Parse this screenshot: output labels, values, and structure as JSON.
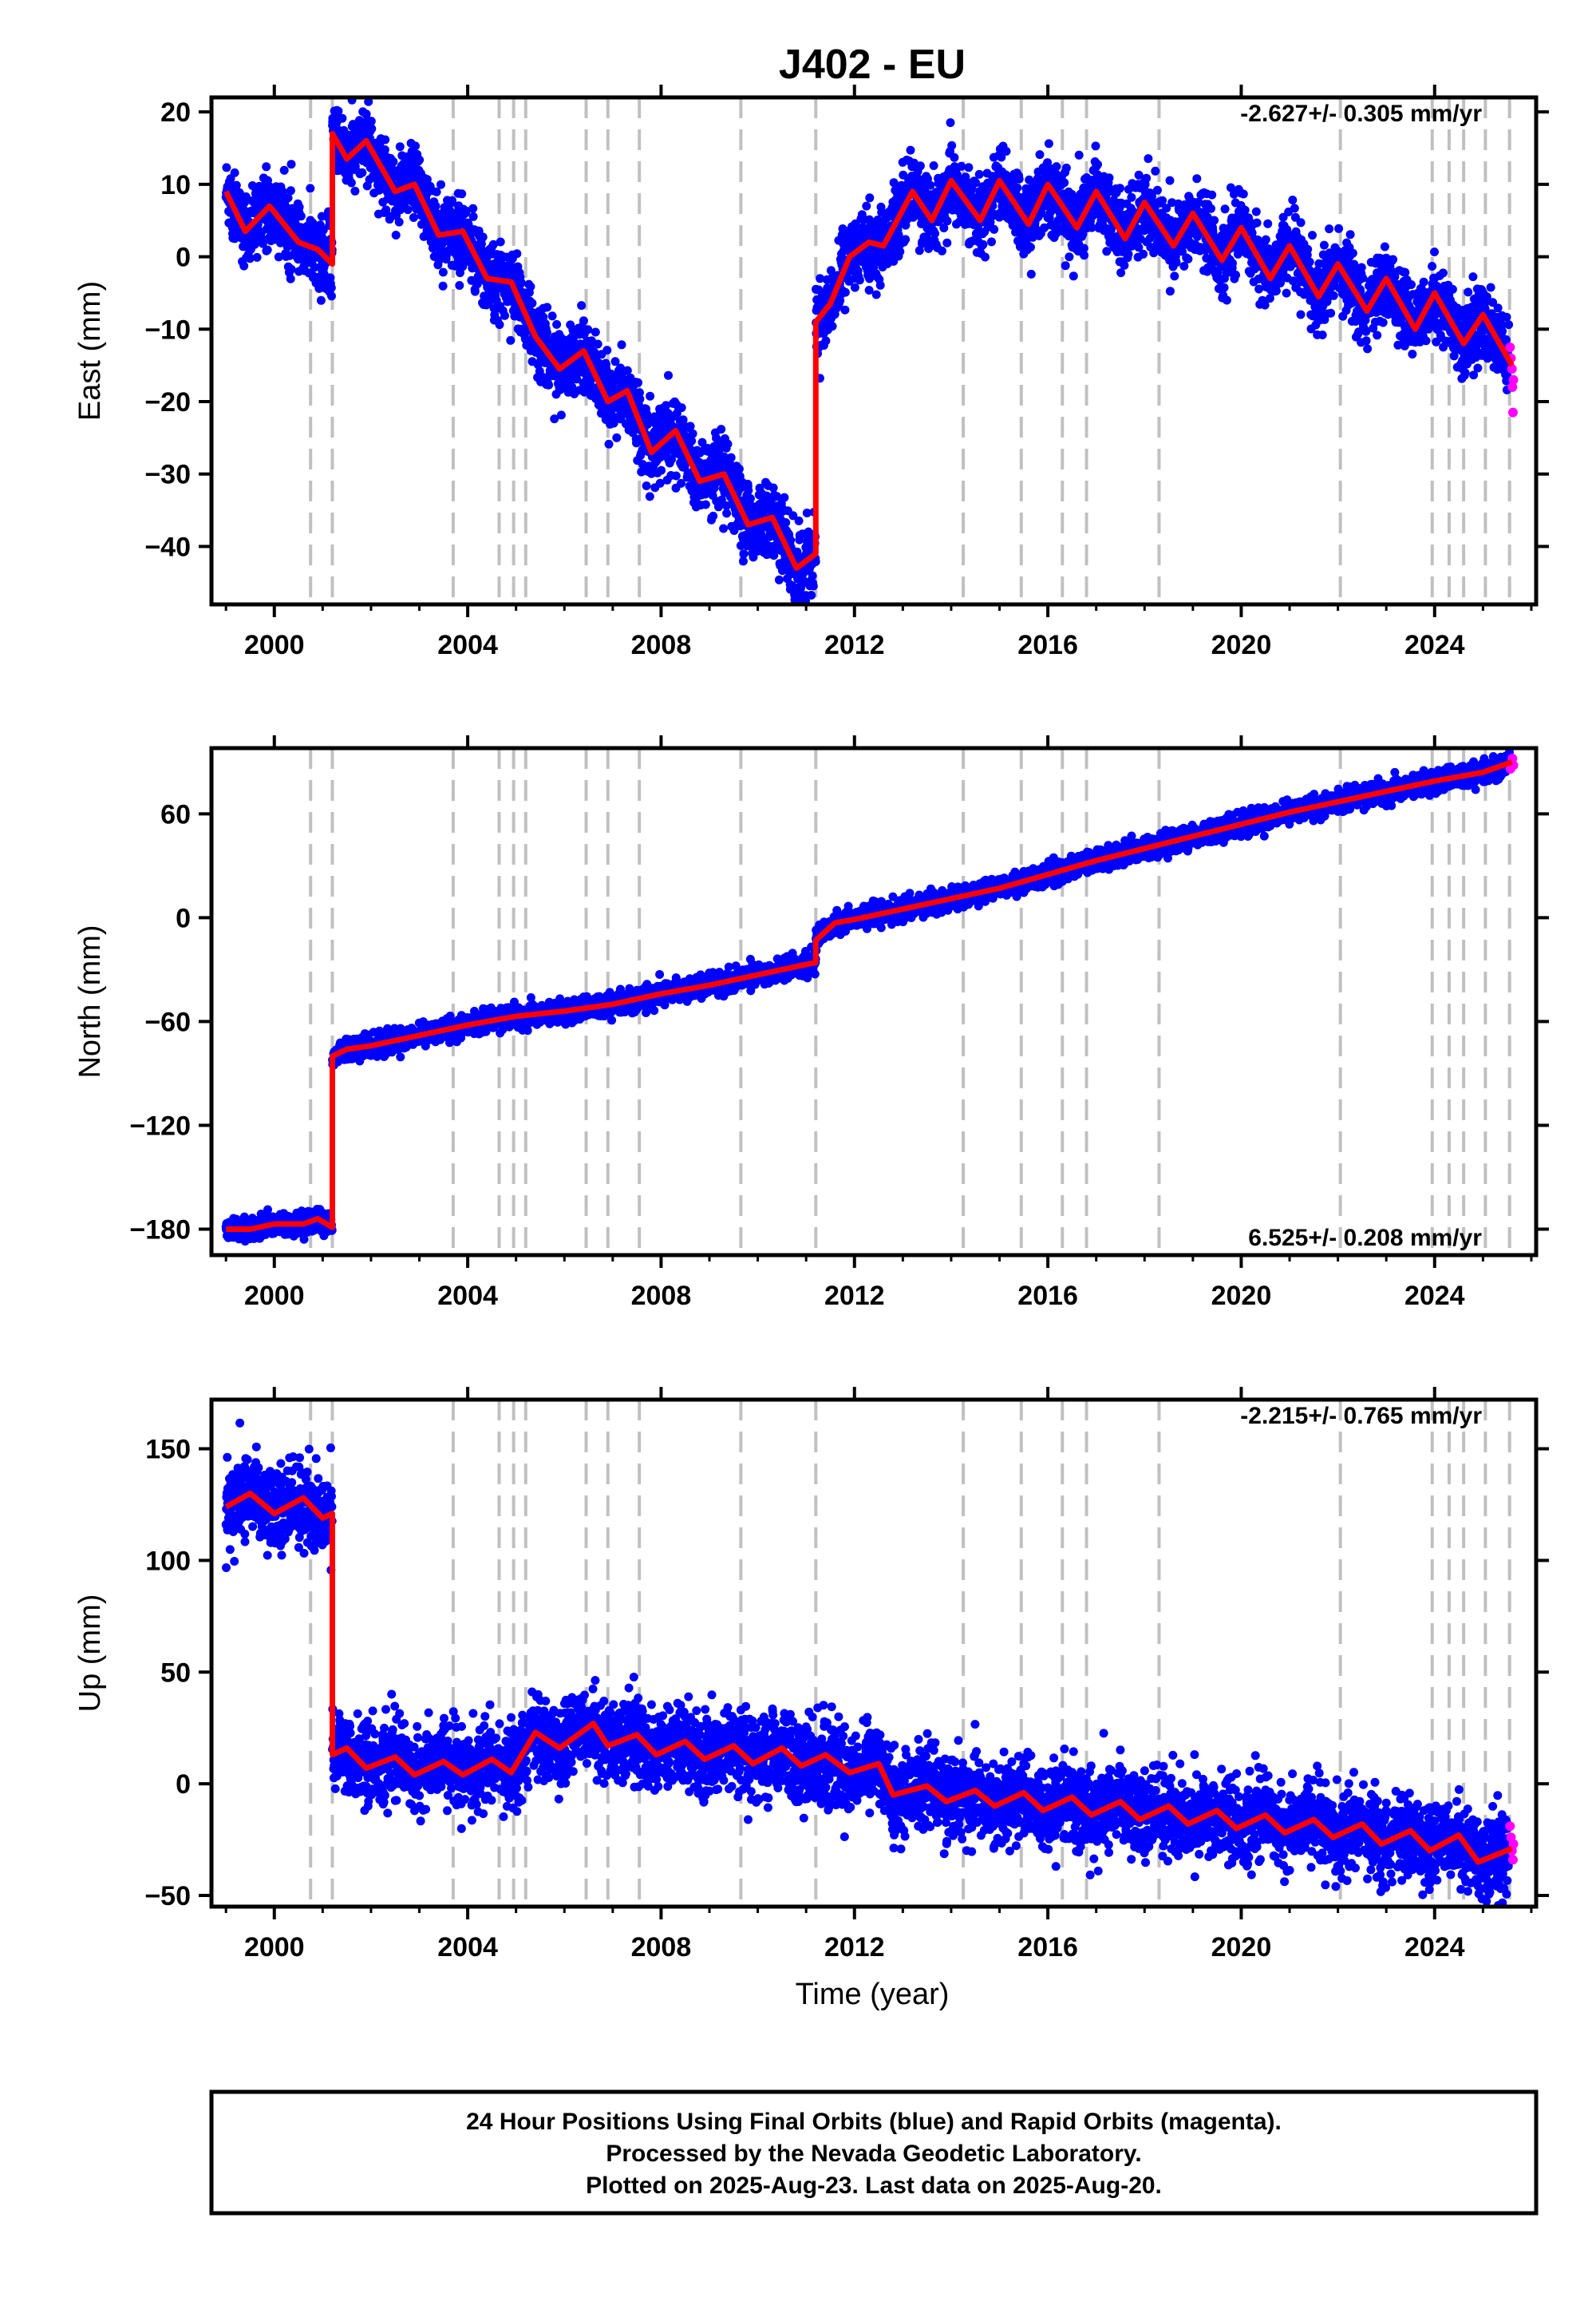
{
  "title": "J402 - EU",
  "xlabel": "Time (year)",
  "footer": {
    "line1": "24 Hour Positions Using Final Orbits (blue) and Rapid Orbits (magenta).",
    "line2": "Processed by the Nevada Geodetic Laboratory.",
    "line3": "Plotted on 2025-Aug-23. Last data on 2025-Aug-20."
  },
  "colors": {
    "final_orbits": "#0000ff",
    "rapid_orbits": "#ff00ff",
    "model": "#ff0000",
    "breaks": "#c0c0c0"
  },
  "chart_data": [
    {
      "type": "scatter",
      "ylabel": "East (mm)",
      "rate_label": "-2.627+/- 0.305 mm/yr",
      "rate_position": "top-right",
      "xlim": [
        1998.7,
        2026.1
      ],
      "ylim": [
        -48,
        22
      ],
      "xticks": [
        2000,
        2004,
        2008,
        2012,
        2016,
        2020,
        2024
      ],
      "yticks": [
        20,
        10,
        0,
        -10,
        -20,
        -30,
        -40
      ],
      "grid": false,
      "breaks": [
        2000.75,
        2001.2,
        2003.7,
        2004.65,
        2004.95,
        2005.2,
        2006.45,
        2006.9,
        2007.55,
        2009.65,
        2011.2,
        2014.25,
        2015.45,
        2016.3,
        2016.8,
        2018.3,
        2022.05,
        2023.95,
        2024.3,
        2024.6,
        2025.05,
        2025.55
      ],
      "scatter_noise_mm": 2.5,
      "model": [
        {
          "x": 1999.0,
          "y": 9
        },
        {
          "x": 1999.4,
          "y": 3.5
        },
        {
          "x": 1999.9,
          "y": 7
        },
        {
          "x": 2000.5,
          "y": 2
        },
        {
          "x": 2000.9,
          "y": 1
        },
        {
          "x": 2001.2,
          "y": -1
        },
        {
          "x": 2001.2,
          "y": 17
        },
        {
          "x": 2001.5,
          "y": 13.5
        },
        {
          "x": 2001.9,
          "y": 16
        },
        {
          "x": 2002.5,
          "y": 9
        },
        {
          "x": 2002.9,
          "y": 10
        },
        {
          "x": 2003.4,
          "y": 3
        },
        {
          "x": 2003.9,
          "y": 3.5
        },
        {
          "x": 2004.4,
          "y": -3
        },
        {
          "x": 2004.9,
          "y": -3.5
        },
        {
          "x": 2005.4,
          "y": -11
        },
        {
          "x": 2005.9,
          "y": -15.5
        },
        {
          "x": 2006.4,
          "y": -13
        },
        {
          "x": 2006.9,
          "y": -20
        },
        {
          "x": 2007.3,
          "y": -18.5
        },
        {
          "x": 2007.8,
          "y": -27
        },
        {
          "x": 2008.3,
          "y": -24
        },
        {
          "x": 2008.8,
          "y": -31
        },
        {
          "x": 2009.3,
          "y": -30
        },
        {
          "x": 2009.8,
          "y": -37
        },
        {
          "x": 2010.3,
          "y": -36
        },
        {
          "x": 2010.8,
          "y": -43
        },
        {
          "x": 2011.2,
          "y": -41
        },
        {
          "x": 2011.2,
          "y": -9
        },
        {
          "x": 2011.5,
          "y": -6.5
        },
        {
          "x": 2011.9,
          "y": 0
        },
        {
          "x": 2012.3,
          "y": 2
        },
        {
          "x": 2012.6,
          "y": 1.5
        },
        {
          "x": 2013.2,
          "y": 9
        },
        {
          "x": 2013.6,
          "y": 5
        },
        {
          "x": 2014.0,
          "y": 10.5
        },
        {
          "x": 2014.6,
          "y": 5
        },
        {
          "x": 2015.0,
          "y": 10.5
        },
        {
          "x": 2015.6,
          "y": 4.5
        },
        {
          "x": 2016.0,
          "y": 10
        },
        {
          "x": 2016.6,
          "y": 4
        },
        {
          "x": 2017.0,
          "y": 9
        },
        {
          "x": 2017.6,
          "y": 2.5
        },
        {
          "x": 2018.0,
          "y": 7.5
        },
        {
          "x": 2018.6,
          "y": 1.5
        },
        {
          "x": 2019.0,
          "y": 6
        },
        {
          "x": 2019.6,
          "y": -0.5
        },
        {
          "x": 2020.0,
          "y": 4
        },
        {
          "x": 2020.6,
          "y": -3
        },
        {
          "x": 2021.0,
          "y": 1.5
        },
        {
          "x": 2021.6,
          "y": -5.5
        },
        {
          "x": 2022.0,
          "y": -1
        },
        {
          "x": 2022.6,
          "y": -7.5
        },
        {
          "x": 2023.0,
          "y": -3
        },
        {
          "x": 2023.6,
          "y": -10
        },
        {
          "x": 2024.0,
          "y": -5
        },
        {
          "x": 2024.6,
          "y": -12
        },
        {
          "x": 2025.0,
          "y": -8
        },
        {
          "x": 2025.6,
          "y": -15
        }
      ],
      "rapid": [
        {
          "x": 2025.56,
          "y": -12.5
        },
        {
          "x": 2025.58,
          "y": -14
        },
        {
          "x": 2025.6,
          "y": -15.5
        },
        {
          "x": 2025.61,
          "y": -18
        },
        {
          "x": 2025.62,
          "y": -21.5
        },
        {
          "x": 2025.63,
          "y": -17
        }
      ]
    },
    {
      "type": "scatter",
      "ylabel": "North (mm)",
      "rate_label": "6.525+/- 0.208 mm/yr",
      "rate_position": "bottom-right",
      "xlim": [
        1998.7,
        2026.1
      ],
      "ylim": [
        -195,
        98
      ],
      "xticks": [
        2000,
        2004,
        2008,
        2012,
        2016,
        2020,
        2024
      ],
      "yticks": [
        60,
        0,
        -60,
        -120,
        -180
      ],
      "grid": false,
      "breaks": [
        2000.75,
        2001.2,
        2003.7,
        2004.65,
        2004.95,
        2005.2,
        2006.45,
        2006.9,
        2007.55,
        2009.65,
        2011.2,
        2014.25,
        2015.45,
        2016.3,
        2016.8,
        2018.3,
        2022.05,
        2023.95,
        2024.3,
        2024.6,
        2025.05,
        2025.55
      ],
      "scatter_noise_mm": 3,
      "model": [
        {
          "x": 1999.0,
          "y": -180
        },
        {
          "x": 1999.5,
          "y": -180
        },
        {
          "x": 2000.0,
          "y": -177
        },
        {
          "x": 2000.6,
          "y": -177
        },
        {
          "x": 2000.9,
          "y": -174
        },
        {
          "x": 2001.2,
          "y": -179
        },
        {
          "x": 2001.2,
          "y": -80
        },
        {
          "x": 2001.5,
          "y": -76
        },
        {
          "x": 2002.0,
          "y": -74
        },
        {
          "x": 2003.0,
          "y": -68
        },
        {
          "x": 2004.0,
          "y": -62
        },
        {
          "x": 2005.0,
          "y": -57
        },
        {
          "x": 2006.0,
          "y": -54
        },
        {
          "x": 2007.0,
          "y": -50
        },
        {
          "x": 2008.0,
          "y": -44
        },
        {
          "x": 2009.0,
          "y": -39
        },
        {
          "x": 2010.0,
          "y": -33
        },
        {
          "x": 2011.0,
          "y": -27
        },
        {
          "x": 2011.2,
          "y": -26
        },
        {
          "x": 2011.2,
          "y": -13
        },
        {
          "x": 2011.6,
          "y": -3
        },
        {
          "x": 2012.0,
          "y": -1
        },
        {
          "x": 2013.0,
          "y": 5
        },
        {
          "x": 2014.0,
          "y": 11
        },
        {
          "x": 2015.0,
          "y": 17
        },
        {
          "x": 2016.0,
          "y": 25
        },
        {
          "x": 2017.0,
          "y": 33
        },
        {
          "x": 2018.0,
          "y": 40
        },
        {
          "x": 2019.0,
          "y": 47
        },
        {
          "x": 2020.0,
          "y": 54
        },
        {
          "x": 2021.0,
          "y": 61
        },
        {
          "x": 2022.0,
          "y": 67
        },
        {
          "x": 2023.0,
          "y": 73
        },
        {
          "x": 2024.0,
          "y": 79
        },
        {
          "x": 2025.0,
          "y": 84
        },
        {
          "x": 2025.6,
          "y": 90
        }
      ],
      "rapid": [
        {
          "x": 2025.57,
          "y": 86
        },
        {
          "x": 2025.59,
          "y": 89
        },
        {
          "x": 2025.61,
          "y": 92
        },
        {
          "x": 2025.63,
          "y": 88
        }
      ]
    },
    {
      "type": "scatter",
      "ylabel": "Up (mm)",
      "rate_label": "-2.215+/- 0.765 mm/yr",
      "rate_position": "top-right",
      "xlim": [
        1998.7,
        2026.1
      ],
      "ylim": [
        -55,
        172
      ],
      "xticks": [
        2000,
        2004,
        2008,
        2012,
        2016,
        2020,
        2024
      ],
      "yticks": [
        150,
        100,
        50,
        0,
        -50
      ],
      "grid": false,
      "breaks": [
        2000.75,
        2001.2,
        2003.7,
        2004.65,
        2004.95,
        2005.2,
        2006.45,
        2006.9,
        2007.55,
        2009.65,
        2011.2,
        2014.25,
        2015.45,
        2016.3,
        2016.8,
        2018.3,
        2022.05,
        2023.95,
        2024.3,
        2024.6,
        2025.05,
        2025.55
      ],
      "scatter_noise_mm": 9,
      "model": [
        {
          "x": 1999.0,
          "y": 124
        },
        {
          "x": 1999.5,
          "y": 130
        },
        {
          "x": 2000.0,
          "y": 121
        },
        {
          "x": 2000.6,
          "y": 128
        },
        {
          "x": 2001.0,
          "y": 119
        },
        {
          "x": 2001.2,
          "y": 121
        },
        {
          "x": 2001.2,
          "y": 13
        },
        {
          "x": 2001.5,
          "y": 16
        },
        {
          "x": 2001.9,
          "y": 7
        },
        {
          "x": 2002.5,
          "y": 12
        },
        {
          "x": 2002.9,
          "y": 4
        },
        {
          "x": 2003.5,
          "y": 10
        },
        {
          "x": 2003.9,
          "y": 4
        },
        {
          "x": 2004.5,
          "y": 11
        },
        {
          "x": 2004.9,
          "y": 5
        },
        {
          "x": 2005.4,
          "y": 23
        },
        {
          "x": 2005.9,
          "y": 16
        },
        {
          "x": 2006.6,
          "y": 27
        },
        {
          "x": 2006.9,
          "y": 17
        },
        {
          "x": 2007.5,
          "y": 22
        },
        {
          "x": 2007.9,
          "y": 13
        },
        {
          "x": 2008.5,
          "y": 19
        },
        {
          "x": 2008.9,
          "y": 11
        },
        {
          "x": 2009.5,
          "y": 17
        },
        {
          "x": 2009.9,
          "y": 9
        },
        {
          "x": 2010.5,
          "y": 16
        },
        {
          "x": 2010.9,
          "y": 8
        },
        {
          "x": 2011.4,
          "y": 13
        },
        {
          "x": 2011.9,
          "y": 5
        },
        {
          "x": 2012.5,
          "y": 9
        },
        {
          "x": 2012.8,
          "y": -5
        },
        {
          "x": 2013.5,
          "y": -1
        },
        {
          "x": 2013.9,
          "y": -8
        },
        {
          "x": 2014.5,
          "y": -3
        },
        {
          "x": 2014.9,
          "y": -10
        },
        {
          "x": 2015.5,
          "y": -4
        },
        {
          "x": 2015.9,
          "y": -12
        },
        {
          "x": 2016.5,
          "y": -6
        },
        {
          "x": 2016.9,
          "y": -14
        },
        {
          "x": 2017.5,
          "y": -8
        },
        {
          "x": 2017.9,
          "y": -16
        },
        {
          "x": 2018.5,
          "y": -10
        },
        {
          "x": 2018.9,
          "y": -18
        },
        {
          "x": 2019.5,
          "y": -12
        },
        {
          "x": 2019.9,
          "y": -20
        },
        {
          "x": 2020.5,
          "y": -14
        },
        {
          "x": 2020.9,
          "y": -22
        },
        {
          "x": 2021.5,
          "y": -16
        },
        {
          "x": 2021.9,
          "y": -24
        },
        {
          "x": 2022.5,
          "y": -18
        },
        {
          "x": 2022.9,
          "y": -27
        },
        {
          "x": 2023.5,
          "y": -21
        },
        {
          "x": 2023.9,
          "y": -30
        },
        {
          "x": 2024.5,
          "y": -23
        },
        {
          "x": 2024.9,
          "y": -35
        },
        {
          "x": 2025.6,
          "y": -29
        }
      ],
      "rapid": [
        {
          "x": 2025.56,
          "y": -19
        },
        {
          "x": 2025.58,
          "y": -24
        },
        {
          "x": 2025.6,
          "y": -30
        },
        {
          "x": 2025.62,
          "y": -34
        },
        {
          "x": 2025.63,
          "y": -27
        }
      ]
    }
  ]
}
